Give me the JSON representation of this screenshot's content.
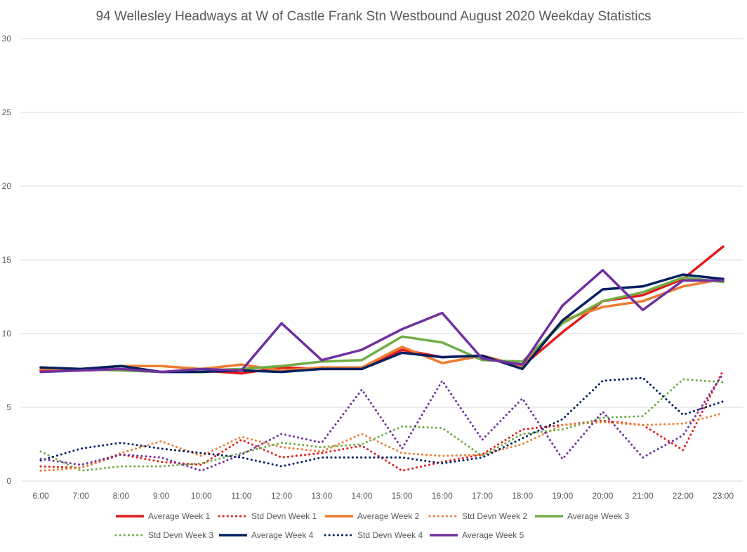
{
  "chart_data": {
    "type": "line",
    "title": "94 Wellesley Headways at W of Castle Frank Stn Westbound August 2020 Weekday Statistics",
    "xlabel": "",
    "ylabel": "",
    "x": [
      "6:00",
      "7:00",
      "8:00",
      "9:00",
      "10:00",
      "11:00",
      "12:00",
      "13:00",
      "14:00",
      "15:00",
      "16:00",
      "17:00",
      "18:00",
      "19:00",
      "20:00",
      "21:00",
      "22:00",
      "23:00"
    ],
    "ylim": [
      0,
      30
    ],
    "yticks": [
      "0",
      "5",
      "10",
      "15",
      "20",
      "25",
      "30"
    ],
    "grid": true,
    "legend_position": "bottom",
    "series": [
      {
        "name": "Average Week 1",
        "style": "solid",
        "color": "#e31a1c",
        "values": [
          7.5,
          7.5,
          7.6,
          7.4,
          7.5,
          7.3,
          7.7,
          7.6,
          7.6,
          8.9,
          8.4,
          8.5,
          7.8,
          10.1,
          12.2,
          12.6,
          13.7,
          15.9
        ]
      },
      {
        "name": "Std Devn Week 1",
        "style": "dotted",
        "color": "#e31a1c",
        "values": [
          1.0,
          0.9,
          1.8,
          1.3,
          1.1,
          2.8,
          1.6,
          1.9,
          2.4,
          0.7,
          1.3,
          1.8,
          3.5,
          3.8,
          4.1,
          3.8,
          2.1,
          7.5
        ]
      },
      {
        "name": "Average Week 2",
        "style": "solid",
        "color": "#ed7d31",
        "values": [
          7.6,
          7.6,
          7.8,
          7.8,
          7.6,
          7.9,
          7.5,
          7.7,
          7.7,
          9.1,
          8.0,
          8.5,
          7.8,
          10.9,
          11.8,
          12.2,
          13.2,
          13.7
        ]
      },
      {
        "name": "Std Devn Week 2",
        "style": "dotted",
        "color": "#ed7d31",
        "values": [
          0.7,
          0.9,
          1.9,
          2.7,
          1.7,
          3.0,
          2.3,
          2.0,
          3.2,
          1.9,
          1.7,
          1.8,
          2.5,
          3.8,
          4.0,
          3.8,
          3.9,
          4.6
        ]
      },
      {
        "name": "Average Week 3",
        "style": "solid",
        "color": "#70ad47",
        "values": [
          7.7,
          7.6,
          7.5,
          7.4,
          7.5,
          7.6,
          7.8,
          8.1,
          8.2,
          9.8,
          9.4,
          8.2,
          8.1,
          10.7,
          12.2,
          12.8,
          13.8,
          13.5
        ]
      },
      {
        "name": "Std Devn Week 3",
        "style": "dotted",
        "color": "#70ad47",
        "values": [
          2.0,
          0.7,
          1.0,
          1.0,
          1.2,
          1.9,
          2.6,
          2.3,
          2.5,
          3.7,
          3.6,
          1.7,
          3.2,
          3.5,
          4.3,
          4.4,
          6.9,
          6.7
        ]
      },
      {
        "name": "Average Week 4",
        "style": "solid",
        "color": "#002060",
        "values": [
          7.7,
          7.6,
          7.8,
          7.4,
          7.4,
          7.5,
          7.4,
          7.6,
          7.6,
          8.7,
          8.4,
          8.5,
          7.6,
          10.9,
          13.0,
          13.2,
          14.0,
          13.7
        ]
      },
      {
        "name": "Std Devn Week 4",
        "style": "dotted",
        "color": "#002060",
        "values": [
          1.4,
          2.2,
          2.6,
          2.2,
          1.9,
          1.6,
          1.0,
          1.6,
          1.6,
          1.6,
          1.2,
          1.6,
          2.9,
          4.2,
          6.8,
          7.0,
          4.5,
          5.4
        ]
      },
      {
        "name": "Average Week 5",
        "style": "solid",
        "color": "#7030a0",
        "values": [
          7.4,
          7.5,
          7.6,
          7.4,
          7.6,
          7.5,
          10.7,
          8.2,
          8.9,
          10.3,
          11.4,
          8.3,
          7.9,
          11.9,
          14.3,
          11.6,
          13.6,
          13.6
        ]
      },
      {
        "name": "Std Devn Week 5",
        "style": "dotted",
        "color": "#7030a0",
        "values": [
          1.5,
          1.1,
          1.8,
          1.6,
          0.7,
          1.8,
          3.2,
          2.6,
          6.2,
          2.2,
          6.8,
          2.8,
          5.6,
          1.5,
          4.7,
          1.6,
          3.1,
          7.3
        ]
      }
    ]
  }
}
